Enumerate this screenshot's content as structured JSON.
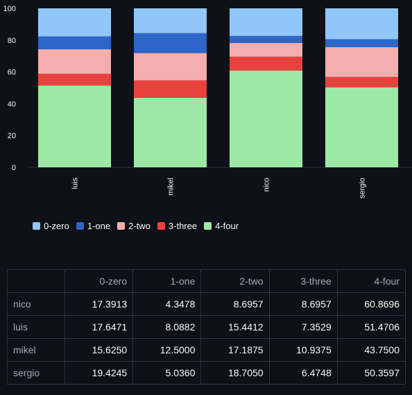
{
  "chart_data": {
    "type": "bar",
    "stacked": true,
    "categories": [
      "luis",
      "mikel",
      "nico",
      "sergio"
    ],
    "series": [
      {
        "name": "4-four",
        "color": "#9ee8a6",
        "values": [
          51.4706,
          43.75,
          60.8696,
          50.3597
        ]
      },
      {
        "name": "3-three",
        "color": "#e8423f",
        "values": [
          7.3529,
          10.9375,
          8.6957,
          6.4748
        ]
      },
      {
        "name": "2-two",
        "color": "#f4aeae",
        "values": [
          15.4412,
          17.1875,
          8.6957,
          18.705
        ]
      },
      {
        "name": "1-one",
        "color": "#2d65c8",
        "values": [
          8.0882,
          12.5,
          4.3478,
          5.036
        ]
      },
      {
        "name": "0-zero",
        "color": "#90c7f8",
        "values": [
          17.6471,
          15.625,
          17.3913,
          19.4245
        ]
      }
    ],
    "yticks": [
      "0",
      "20",
      "40",
      "60",
      "80",
      "100"
    ],
    "ylim": [
      0,
      100
    ],
    "legend_position": "bottom-left"
  },
  "legend": [
    {
      "label": "0-zero",
      "color": "#90c7f8"
    },
    {
      "label": "1-one",
      "color": "#2d65c8"
    },
    {
      "label": "2-two",
      "color": "#f4aeae"
    },
    {
      "label": "3-three",
      "color": "#e8423f"
    },
    {
      "label": "4-four",
      "color": "#9ee8a6"
    }
  ],
  "table": {
    "headers": [
      "",
      "0-zero",
      "1-one",
      "2-two",
      "3-three",
      "4-four"
    ],
    "rows": [
      {
        "label": "nico",
        "cells": [
          "17.3913",
          "4.3478",
          "8.6957",
          "8.6957",
          "60.8696"
        ]
      },
      {
        "label": "luis",
        "cells": [
          "17.6471",
          "8.0882",
          "15.4412",
          "7.3529",
          "51.4706"
        ]
      },
      {
        "label": "mikel",
        "cells": [
          "15.6250",
          "12.5000",
          "17.1875",
          "10.9375",
          "43.7500"
        ]
      },
      {
        "label": "sergio",
        "cells": [
          "19.4245",
          "5.0360",
          "18.7050",
          "6.4748",
          "50.3597"
        ]
      }
    ]
  }
}
